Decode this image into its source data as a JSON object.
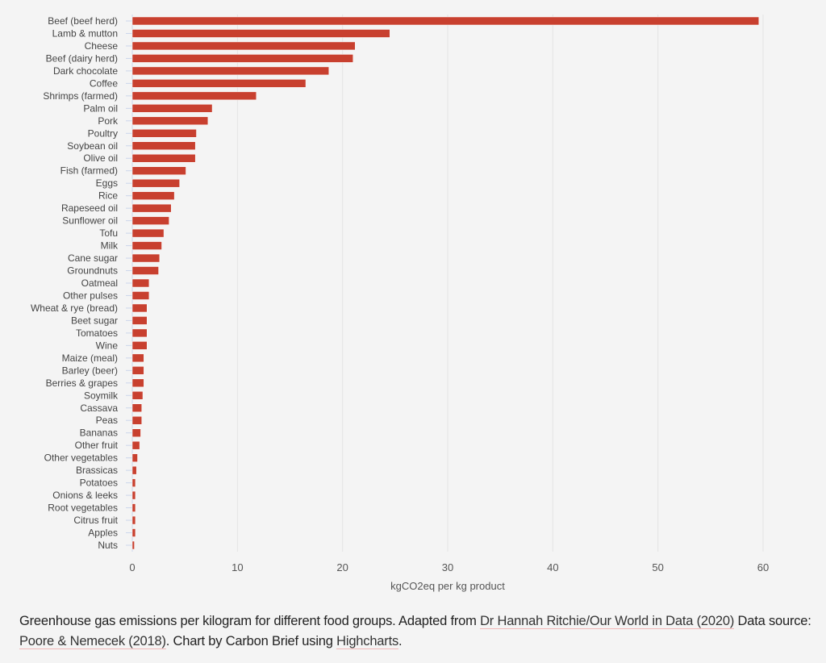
{
  "chart_data": {
    "type": "bar",
    "orientation": "horizontal",
    "xlabel": "kgCO2eq per kg product",
    "xlim": [
      0,
      62
    ],
    "xticks": [
      0,
      10,
      20,
      30,
      40,
      50,
      60
    ],
    "grid": true,
    "bar_color": "#c8402f",
    "categories": [
      "Beef (beef herd)",
      "Lamb & mutton",
      "Cheese",
      "Beef (dairy herd)",
      "Dark chocolate",
      "Coffee",
      "Shrimps (farmed)",
      "Palm oil",
      "Pork",
      "Poultry",
      "Soybean oil",
      "Olive oil",
      "Fish (farmed)",
      "Eggs",
      "Rice",
      "Rapeseed oil",
      "Sunflower oil",
      "Tofu",
      "Milk",
      "Cane sugar",
      "Groundnuts",
      "Oatmeal",
      "Other pulses",
      "Wheat & rye (bread)",
      "Beet sugar",
      "Tomatoes",
      "Wine",
      "Maize (meal)",
      "Barley (beer)",
      "Berries & grapes",
      "Soymilk",
      "Cassava",
      "Peas",
      "Bananas",
      "Other fruit",
      "Other vegetables",
      "Brassicas",
      "Potatoes",
      "Onions & leeks",
      "Root vegetables",
      "Citrus fruit",
      "Apples",
      "Nuts"
    ],
    "values": [
      59.6,
      24.5,
      21.2,
      21.0,
      18.7,
      16.5,
      11.8,
      7.6,
      7.2,
      6.1,
      6.0,
      6.0,
      5.1,
      4.5,
      4.0,
      3.7,
      3.5,
      3.0,
      2.8,
      2.6,
      2.5,
      1.6,
      1.6,
      1.4,
      1.4,
      1.4,
      1.4,
      1.1,
      1.1,
      1.1,
      1.0,
      0.9,
      0.9,
      0.8,
      0.7,
      0.5,
      0.4,
      0.3,
      0.3,
      0.3,
      0.3,
      0.3,
      0.2
    ]
  },
  "caption": {
    "text1": "Greenhouse gas emissions per kilogram for different food groups. Adapted from ",
    "link1": "Dr Hannah Ritchie/Our World in Data (2020)",
    "text2": " Data source: ",
    "link2": "Poore & Nemecek (2018)",
    "text3": ". Chart by Carbon Brief using ",
    "link3": "Highcharts",
    "text4": ".",
    "link_underline_color": "#f2b8b8"
  }
}
